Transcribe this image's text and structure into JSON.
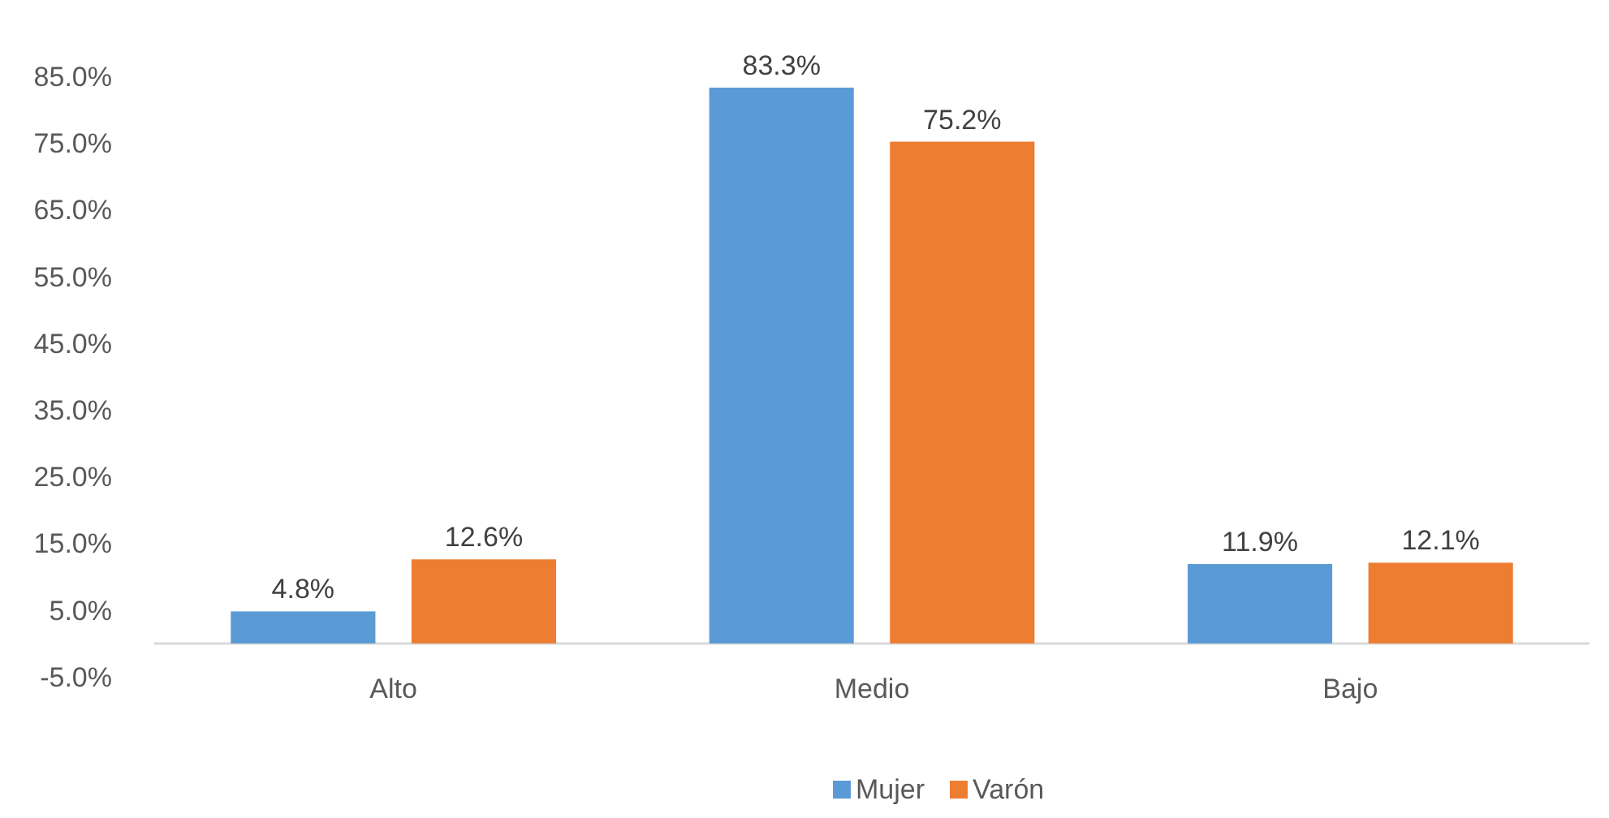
{
  "chart_data": {
    "type": "bar",
    "categories": [
      "Alto",
      "Medio",
      "Bajo"
    ],
    "series": [
      {
        "name": "Mujer",
        "color": "#5b9bd5",
        "values": [
          4.8,
          83.3,
          11.9
        ],
        "value_labels": [
          "4.8%",
          "83.3%",
          "11.9%"
        ]
      },
      {
        "name": "Varón",
        "color": "#ed7d31",
        "values": [
          12.6,
          75.2,
          12.1
        ],
        "value_labels": [
          "12.6%",
          "75.2%",
          "12.1%"
        ]
      }
    ],
    "ylim": [
      -5,
      85
    ],
    "yticks": [
      {
        "value": -5,
        "label": "-5.0%"
      },
      {
        "value": 5,
        "label": "5.0%"
      },
      {
        "value": 15,
        "label": "15.0%"
      },
      {
        "value": 25,
        "label": "25.0%"
      },
      {
        "value": 35,
        "label": "35.0%"
      },
      {
        "value": 45,
        "label": "45.0%"
      },
      {
        "value": 55,
        "label": "55.0%"
      },
      {
        "value": 65,
        "label": "65.0%"
      },
      {
        "value": 75,
        "label": "75.0%"
      },
      {
        "value": 85,
        "label": "85.0%"
      }
    ],
    "grid": false,
    "legend": "bottom"
  }
}
